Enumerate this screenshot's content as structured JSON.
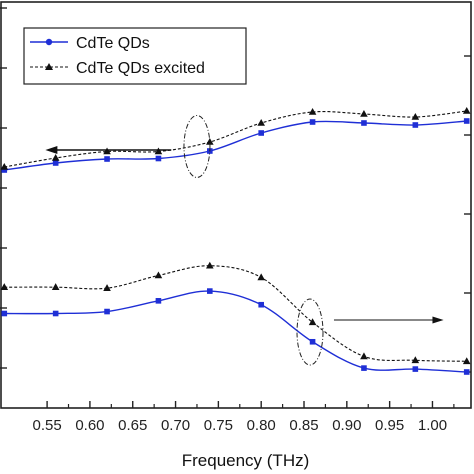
{
  "chart_data": {
    "type": "line",
    "xlabel": "Frequency (THz)",
    "xlim": [
      0.495,
      1.045
    ],
    "x_ticks": [
      "0.55",
      "0.60",
      "0.65",
      "0.70",
      "0.75",
      "0.80",
      "0.85",
      "0.90",
      "0.95",
      "1.00"
    ],
    "x": [
      0.5,
      0.56,
      0.62,
      0.68,
      0.74,
      0.8,
      0.86,
      0.92,
      0.98,
      1.04
    ],
    "left_axis": {
      "ylim": [
        0,
        1
      ],
      "series": [
        {
          "name": "CdTe QDs",
          "color": "#1f2fd6",
          "marker": "square",
          "values": [
            0.55,
            0.62,
            0.66,
            0.665,
            0.74,
            0.92,
            1.03,
            1.02,
            1.0,
            1.04
          ]
        },
        {
          "name": "CdTe QDs excited",
          "color": "#111111",
          "marker": "triangle",
          "values": [
            0.58,
            0.67,
            0.735,
            0.735,
            0.83,
            1.02,
            1.13,
            1.11,
            1.08,
            1.14
          ]
        }
      ]
    },
    "right_axis": {
      "ylim": [
        0,
        1
      ],
      "series": [
        {
          "name": "CdTe QDs",
          "color": "#1f2fd6",
          "marker": "square",
          "values": [
            0.3,
            0.3,
            0.31,
            0.365,
            0.415,
            0.345,
            0.155,
            0.02,
            0.015,
            0.0
          ]
        },
        {
          "name": "CdTe QDs excited",
          "color": "#111111",
          "marker": "triangle",
          "values": [
            0.435,
            0.435,
            0.43,
            0.495,
            0.545,
            0.485,
            0.255,
            0.08,
            0.06,
            0.055
          ]
        }
      ]
    },
    "legend": {
      "placement": "top-left",
      "entries": [
        "CdTe QDs",
        "CdTe QDs excited"
      ]
    },
    "annotations": [
      "left arrow near left-axis curves",
      "right arrow near right-axis curves",
      "dashed ellipses marking each curve pair"
    ],
    "grid": false
  }
}
